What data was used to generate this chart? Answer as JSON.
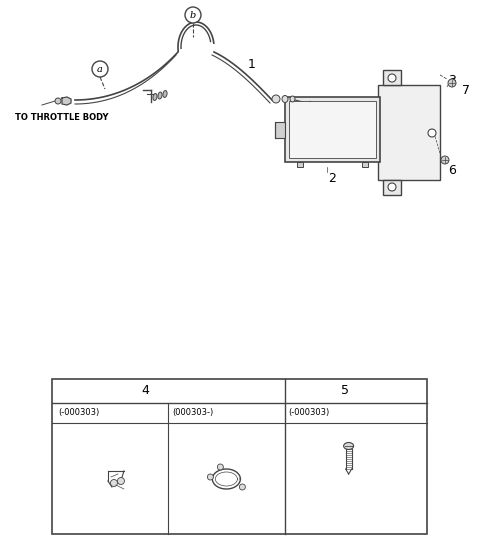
{
  "bg_color": "#ffffff",
  "line_color": "#444444",
  "text_color": "#000000",
  "parts": {
    "label_a": "a",
    "label_b": "b",
    "throttle_text": "TO THROTTLE BODY",
    "part1": "1",
    "part2": "2",
    "part3": "3",
    "part6": "6",
    "part7": "7",
    "table_col1_header": "4",
    "table_col2_header": "5",
    "table_a_code1": "(-000303)",
    "table_a_code2": "(000303-)",
    "table_b_code": "(-000303)"
  }
}
